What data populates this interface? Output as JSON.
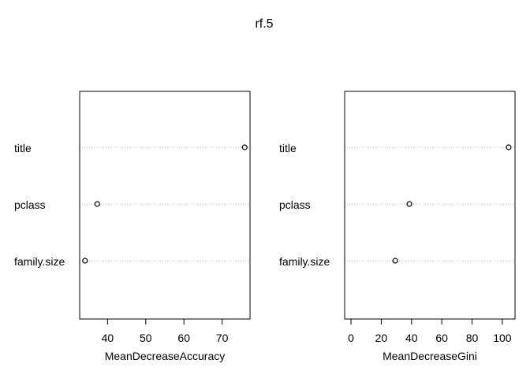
{
  "chart_data": {
    "title": "rf.5",
    "panels": [
      {
        "type": "scatter",
        "style": "dotchart",
        "xlabel": "MeanDecreaseAccuracy",
        "categories": [
          "title",
          "pclass",
          "family.size"
        ],
        "values": [
          75.9,
          37.3,
          34.1
        ],
        "xlim": [
          32.7,
          77.3
        ],
        "xticks": [
          40,
          50,
          60,
          70
        ],
        "grid": "dotted horizontal lines"
      },
      {
        "type": "scatter",
        "style": "dotchart",
        "xlabel": "MeanDecreaseGini",
        "categories": [
          "title",
          "pclass",
          "family.size"
        ],
        "values": [
          104.2,
          38.6,
          29.2
        ],
        "xlim": [
          -4.2,
          108.4
        ],
        "xticks": [
          0,
          20,
          40,
          60,
          80,
          100
        ],
        "grid": "dotted horizontal lines"
      }
    ]
  }
}
